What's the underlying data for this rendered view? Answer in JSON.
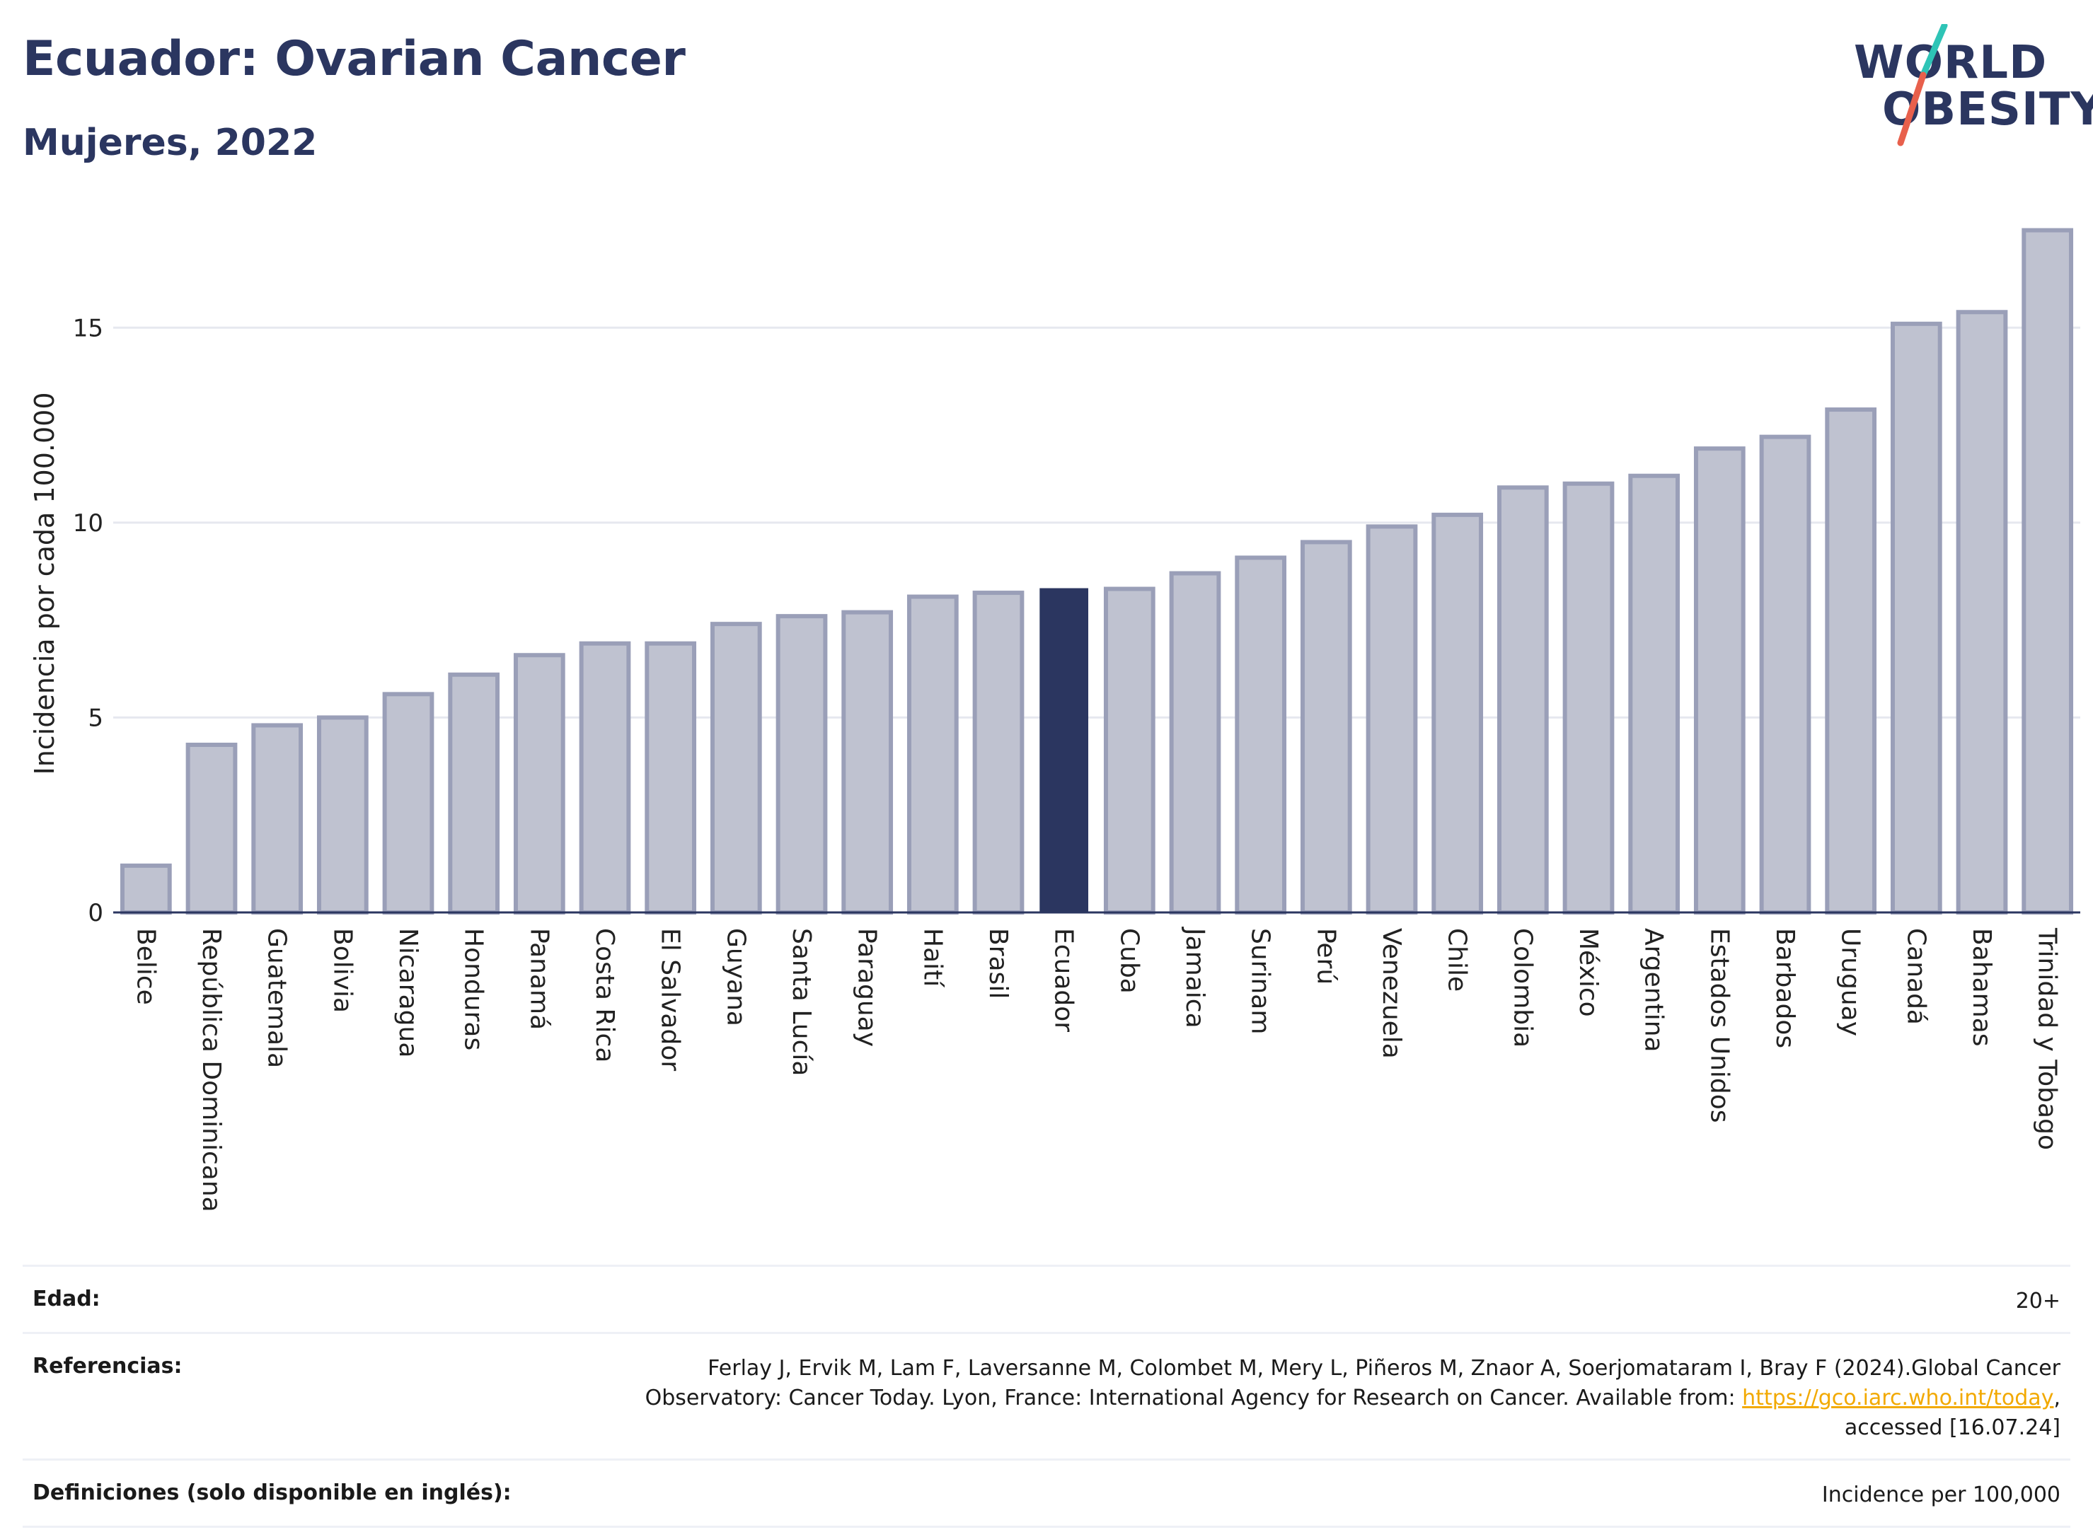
{
  "header": {
    "title": "Ecuador: Ovarian Cancer",
    "subtitle": "Mujeres, 2022"
  },
  "logo": {
    "line1": "WORLD",
    "line2": "OBESITY",
    "colors": {
      "text": "#2b3660",
      "slash_top": "#2ec4b6",
      "slash_bottom": "#e8604c"
    }
  },
  "chart_data": {
    "type": "bar",
    "ylabel": "Incidencia por cada 100.000",
    "xlabel": "",
    "ylim": [
      0,
      17.6
    ],
    "yticks": [
      0,
      5,
      10,
      15
    ],
    "grid": true,
    "highlight": "Ecuador",
    "colors": {
      "bar": "#bfc2d0",
      "bar_border": "#9a9fb8",
      "highlight": "#2b3660",
      "grid": "#e6e8ef",
      "axis": "#2b3660"
    },
    "categories": [
      "Belice",
      "República Dominicana",
      "Guatemala",
      "Bolivia",
      "Nicaragua",
      "Honduras",
      "Panamá",
      "Costa Rica",
      "El Salvador",
      "Guyana",
      "Santa Lucía",
      "Paraguay",
      "Haití",
      "Brasil",
      "Ecuador",
      "Cuba",
      "Jamaica",
      "Surinam",
      "Perú",
      "Venezuela",
      "Chile",
      "Colombia",
      "México",
      "Argentina",
      "Estados Unidos",
      "Barbados",
      "Uruguay",
      "Canadá",
      "Bahamas",
      "Trinidad y Tobago"
    ],
    "values": [
      1.2,
      4.3,
      4.8,
      5.0,
      5.6,
      6.1,
      6.6,
      6.9,
      6.9,
      7.4,
      7.6,
      7.7,
      8.1,
      8.2,
      8.3,
      8.3,
      8.7,
      9.1,
      9.5,
      9.9,
      10.2,
      10.9,
      11.0,
      11.2,
      11.9,
      12.2,
      12.9,
      15.1,
      15.4,
      17.5
    ]
  },
  "info": {
    "age_label": "Edad:",
    "age_value": "20+",
    "refs_label": "Referencias:",
    "refs_line1": "Ferlay J, Ervik M, Lam F, Laversanne M, Colombet M, Mery L, Piñeros M, Znaor A, Soerjomataram I, Bray F (2024).Global Cancer",
    "refs_line2_pre": "Observatory: Cancer Today. Lyon, France: International Agency for Research on Cancer. Available from: ",
    "refs_link": "https://gco.iarc.who.int/today",
    "refs_line2_post": ",",
    "refs_line3": "accessed [16.07.24]",
    "defs_label": "Definiciones (solo disponible en inglés):",
    "defs_value": "Incidence per 100,000"
  }
}
